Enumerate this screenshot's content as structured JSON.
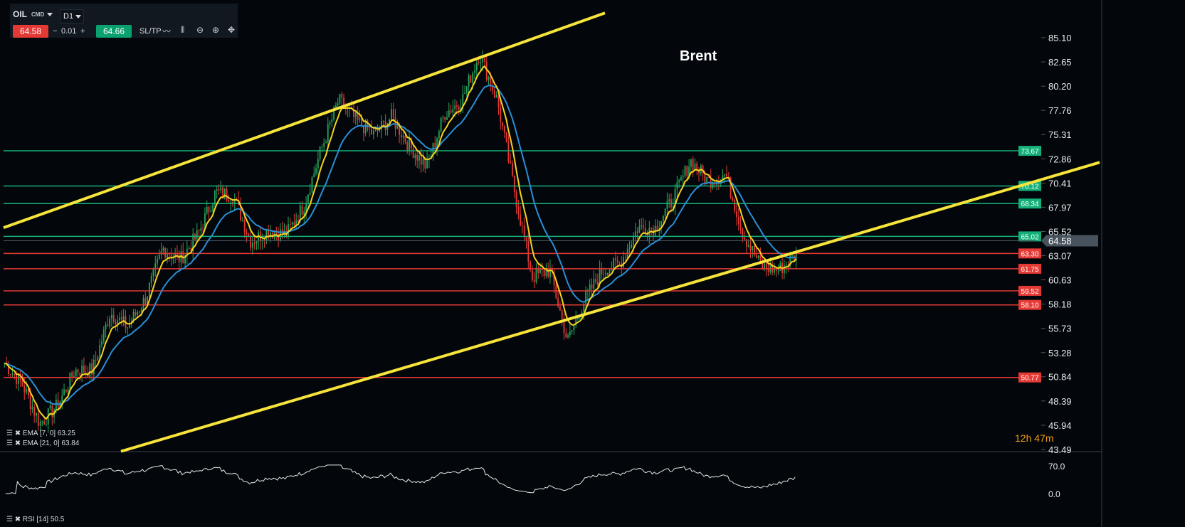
{
  "toolbar": {
    "symbol": "OIL",
    "symbol_type": "CMD",
    "timeframe": "D1",
    "bid": "64.58",
    "ask": "64.66",
    "lot_minus": "−",
    "lot_value": "0.01",
    "lot_plus": "+",
    "sltp_label": "SL/TP",
    "icons": [
      "line-chart-icon",
      "candles-icon",
      "zoom-out-icon",
      "zoom-in-icon",
      "crosshair-move-icon"
    ]
  },
  "title": "Brent",
  "countdown": "12h 47m",
  "indicators": {
    "ema7": "EMA [7, 0] 63.25",
    "ema21": "EMA [21, 0] 63.84",
    "rsi": "RSI [14] 50.5"
  },
  "colors": {
    "background": "#03070b",
    "up_candle": "#26a65b",
    "down_candle": "#e53935",
    "ema7": "#f5d21f",
    "ema21": "#2a8fd6",
    "channel": "#f7e43a",
    "support_level": "#e53935",
    "resistance_level": "#15b07a",
    "current_price": "#4a555f"
  },
  "chart_data": {
    "type": "candlestick",
    "title": "Brent",
    "ylim": [
      43.49,
      85.1
    ],
    "y_ticks": [
      "85.10",
      "82.65",
      "80.20",
      "77.76",
      "75.31",
      "72.86",
      "70.41",
      "67.97",
      "65.52",
      "63.07",
      "60.63",
      "58.18",
      "55.73",
      "53.28",
      "50.84",
      "48.39",
      "45.94",
      "43.49"
    ],
    "current_price": "64.58",
    "approx_close_path": [
      52.2,
      50.1,
      46.1,
      47.9,
      51.5,
      51.5,
      57.3,
      55.9,
      58.7,
      63.8,
      62.7,
      65.2,
      69.5,
      69.1,
      64.5,
      65.6,
      65.2,
      68.1,
      73.8,
      78.8,
      76.7,
      75.3,
      77.1,
      74.2,
      72.0,
      77.4,
      78.8,
      83.5,
      78.8,
      69.5,
      60.9,
      61.6,
      54.4,
      58.7,
      61.6,
      62.3,
      65.9,
      65.9,
      68.8,
      72.7,
      70.6,
      71.3,
      65.2,
      62.0,
      61.6,
      63.2
    ],
    "levels": [
      {
        "value": "73.67",
        "kind": "green"
      },
      {
        "value": "70.12",
        "kind": "green"
      },
      {
        "value": "68.34",
        "kind": "green"
      },
      {
        "value": "65.02",
        "kind": "green"
      },
      {
        "value": "63.30",
        "kind": "red"
      },
      {
        "value": "61.75",
        "kind": "red"
      },
      {
        "value": "59.52",
        "kind": "red"
      },
      {
        "value": "58.10",
        "kind": "red"
      },
      {
        "value": "50.77",
        "kind": "red"
      }
    ],
    "channel_lines": [
      {
        "name": "upper",
        "from_price": 65.9,
        "to_price": 87.6
      },
      {
        "name": "lower",
        "from_price": 43.3,
        "to_price": 72.5
      }
    ],
    "rsi": {
      "ticks": [
        "70.0",
        "0.0"
      ],
      "last": 50.5
    }
  }
}
